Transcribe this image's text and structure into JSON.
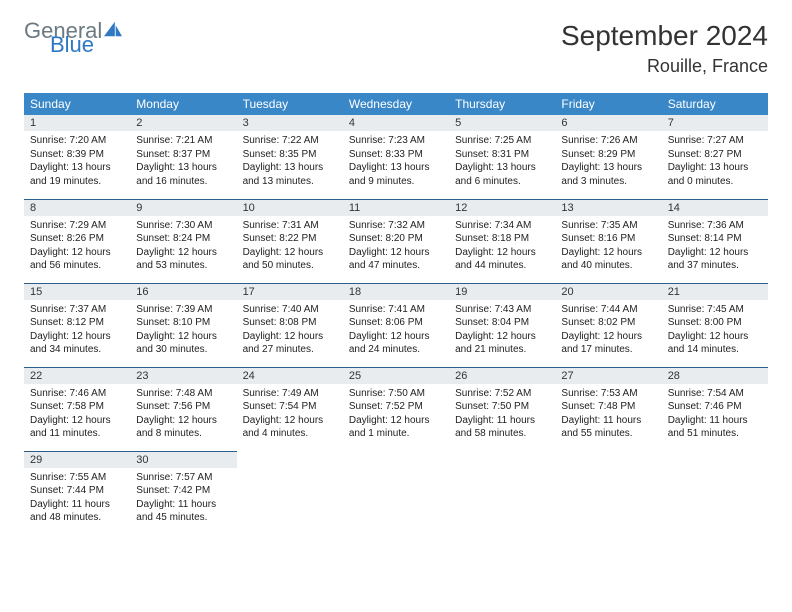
{
  "brand": {
    "part1": "General",
    "part2": "Blue"
  },
  "title": {
    "month": "September 2024",
    "location": "Rouille, France"
  },
  "colors": {
    "header_bg": "#3a87c8",
    "daynum_bg": "#e9ecef",
    "row_border": "#2b5f8a",
    "brand_gray": "#6b7a82",
    "brand_blue": "#2f78c4"
  },
  "weekdays": [
    "Sunday",
    "Monday",
    "Tuesday",
    "Wednesday",
    "Thursday",
    "Friday",
    "Saturday"
  ],
  "weeks": [
    [
      {
        "n": "1",
        "sr": "7:20 AM",
        "ss": "8:39 PM",
        "dl": "13 hours and 19 minutes."
      },
      {
        "n": "2",
        "sr": "7:21 AM",
        "ss": "8:37 PM",
        "dl": "13 hours and 16 minutes."
      },
      {
        "n": "3",
        "sr": "7:22 AM",
        "ss": "8:35 PM",
        "dl": "13 hours and 13 minutes."
      },
      {
        "n": "4",
        "sr": "7:23 AM",
        "ss": "8:33 PM",
        "dl": "13 hours and 9 minutes."
      },
      {
        "n": "5",
        "sr": "7:25 AM",
        "ss": "8:31 PM",
        "dl": "13 hours and 6 minutes."
      },
      {
        "n": "6",
        "sr": "7:26 AM",
        "ss": "8:29 PM",
        "dl": "13 hours and 3 minutes."
      },
      {
        "n": "7",
        "sr": "7:27 AM",
        "ss": "8:27 PM",
        "dl": "13 hours and 0 minutes."
      }
    ],
    [
      {
        "n": "8",
        "sr": "7:29 AM",
        "ss": "8:26 PM",
        "dl": "12 hours and 56 minutes."
      },
      {
        "n": "9",
        "sr": "7:30 AM",
        "ss": "8:24 PM",
        "dl": "12 hours and 53 minutes."
      },
      {
        "n": "10",
        "sr": "7:31 AM",
        "ss": "8:22 PM",
        "dl": "12 hours and 50 minutes."
      },
      {
        "n": "11",
        "sr": "7:32 AM",
        "ss": "8:20 PM",
        "dl": "12 hours and 47 minutes."
      },
      {
        "n": "12",
        "sr": "7:34 AM",
        "ss": "8:18 PM",
        "dl": "12 hours and 44 minutes."
      },
      {
        "n": "13",
        "sr": "7:35 AM",
        "ss": "8:16 PM",
        "dl": "12 hours and 40 minutes."
      },
      {
        "n": "14",
        "sr": "7:36 AM",
        "ss": "8:14 PM",
        "dl": "12 hours and 37 minutes."
      }
    ],
    [
      {
        "n": "15",
        "sr": "7:37 AM",
        "ss": "8:12 PM",
        "dl": "12 hours and 34 minutes."
      },
      {
        "n": "16",
        "sr": "7:39 AM",
        "ss": "8:10 PM",
        "dl": "12 hours and 30 minutes."
      },
      {
        "n": "17",
        "sr": "7:40 AM",
        "ss": "8:08 PM",
        "dl": "12 hours and 27 minutes."
      },
      {
        "n": "18",
        "sr": "7:41 AM",
        "ss": "8:06 PM",
        "dl": "12 hours and 24 minutes."
      },
      {
        "n": "19",
        "sr": "7:43 AM",
        "ss": "8:04 PM",
        "dl": "12 hours and 21 minutes."
      },
      {
        "n": "20",
        "sr": "7:44 AM",
        "ss": "8:02 PM",
        "dl": "12 hours and 17 minutes."
      },
      {
        "n": "21",
        "sr": "7:45 AM",
        "ss": "8:00 PM",
        "dl": "12 hours and 14 minutes."
      }
    ],
    [
      {
        "n": "22",
        "sr": "7:46 AM",
        "ss": "7:58 PM",
        "dl": "12 hours and 11 minutes."
      },
      {
        "n": "23",
        "sr": "7:48 AM",
        "ss": "7:56 PM",
        "dl": "12 hours and 8 minutes."
      },
      {
        "n": "24",
        "sr": "7:49 AM",
        "ss": "7:54 PM",
        "dl": "12 hours and 4 minutes."
      },
      {
        "n": "25",
        "sr": "7:50 AM",
        "ss": "7:52 PM",
        "dl": "12 hours and 1 minute."
      },
      {
        "n": "26",
        "sr": "7:52 AM",
        "ss": "7:50 PM",
        "dl": "11 hours and 58 minutes."
      },
      {
        "n": "27",
        "sr": "7:53 AM",
        "ss": "7:48 PM",
        "dl": "11 hours and 55 minutes."
      },
      {
        "n": "28",
        "sr": "7:54 AM",
        "ss": "7:46 PM",
        "dl": "11 hours and 51 minutes."
      }
    ],
    [
      {
        "n": "29",
        "sr": "7:55 AM",
        "ss": "7:44 PM",
        "dl": "11 hours and 48 minutes."
      },
      {
        "n": "30",
        "sr": "7:57 AM",
        "ss": "7:42 PM",
        "dl": "11 hours and 45 minutes."
      },
      null,
      null,
      null,
      null,
      null
    ]
  ],
  "labels": {
    "sunrise": "Sunrise: ",
    "sunset": "Sunset: ",
    "daylight": "Daylight: "
  }
}
